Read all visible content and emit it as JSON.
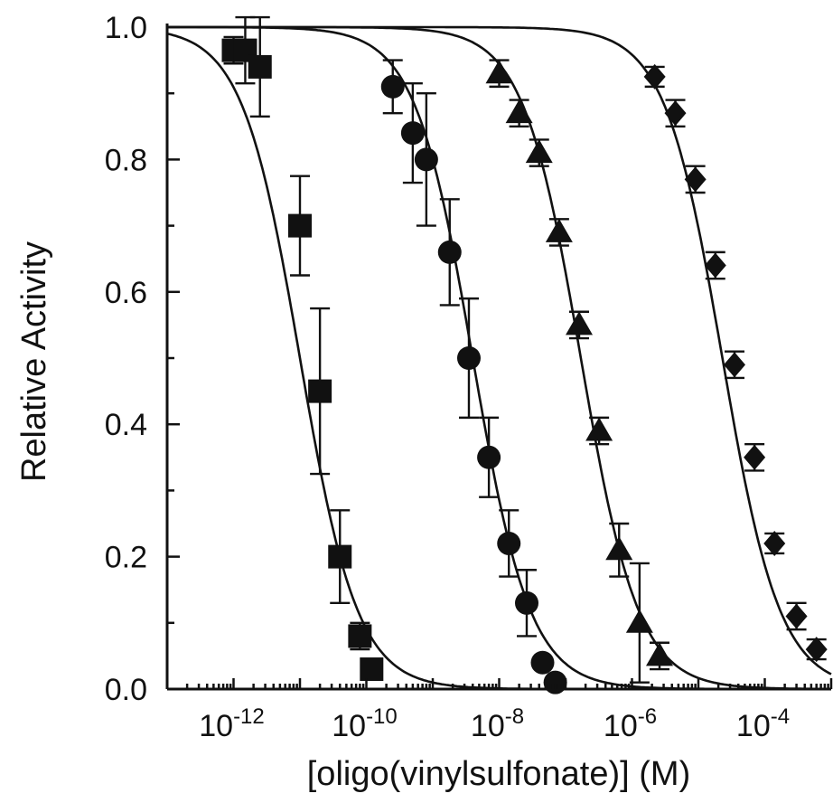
{
  "chart_data": {
    "type": "scatter",
    "xlabel": "[oligo(vinylsulfonate)] (M)",
    "ylabel": "Relative Activity",
    "x_scale": "log",
    "xlim": [
      1e-13,
      0.001
    ],
    "ylim": [
      0.0,
      1.0
    ],
    "x_ticks": [
      {
        "value": 1e-12,
        "base": "10",
        "exp": "-12"
      },
      {
        "value": 1e-10,
        "base": "10",
        "exp": "-10"
      },
      {
        "value": 1e-08,
        "base": "10",
        "exp": "-8"
      },
      {
        "value": 1e-06,
        "base": "10",
        "exp": "-6"
      },
      {
        "value": 0.0001,
        "base": "10",
        "exp": "-4"
      }
    ],
    "y_ticks": [
      {
        "value": 0.0,
        "label": "0.0"
      },
      {
        "value": 0.2,
        "label": "0.2"
      },
      {
        "value": 0.4,
        "label": "0.4"
      },
      {
        "value": 0.6,
        "label": "0.6"
      },
      {
        "value": 0.8,
        "label": "0.8"
      },
      {
        "value": 1.0,
        "label": "1.0"
      }
    ],
    "grid": false,
    "series": [
      {
        "marker": "square",
        "fit": {
          "ic50": 1e-11,
          "hill": 1.0
        },
        "points": [
          {
            "x": 1e-12,
            "y": 0.965,
            "err": 0.02
          },
          {
            "x": 1.5e-12,
            "y": 0.965,
            "err": 0.05
          },
          {
            "x": 2.5e-12,
            "y": 0.94,
            "err": 0.075
          },
          {
            "x": 1e-11,
            "y": 0.7,
            "err": 0.075
          },
          {
            "x": 2e-11,
            "y": 0.45,
            "err": 0.125
          },
          {
            "x": 4e-11,
            "y": 0.2,
            "err": 0.07
          },
          {
            "x": 8e-11,
            "y": 0.08,
            "err": 0.02
          },
          {
            "x": 1.2e-10,
            "y": 0.03,
            "err": 0.0
          }
        ]
      },
      {
        "marker": "circle",
        "fit": {
          "ic50": 4e-09,
          "hill": 1.0
        },
        "points": [
          {
            "x": 2.5e-10,
            "y": 0.91,
            "err": 0.04
          },
          {
            "x": 5e-10,
            "y": 0.84,
            "err": 0.075
          },
          {
            "x": 8e-10,
            "y": 0.8,
            "err": 0.1
          },
          {
            "x": 1.8e-09,
            "y": 0.66,
            "err": 0.08
          },
          {
            "x": 3.5e-09,
            "y": 0.5,
            "err": 0.09
          },
          {
            "x": 7e-09,
            "y": 0.35,
            "err": 0.06
          },
          {
            "x": 1.4e-08,
            "y": 0.22,
            "err": 0.05
          },
          {
            "x": 2.6e-08,
            "y": 0.13,
            "err": 0.05
          },
          {
            "x": 4.5e-08,
            "y": 0.04,
            "err": 0.0
          },
          {
            "x": 7e-08,
            "y": 0.01,
            "err": 0.0
          }
        ]
      },
      {
        "marker": "triangle",
        "fit": {
          "ic50": 1.7e-07,
          "hill": 1.0
        },
        "points": [
          {
            "x": 1e-08,
            "y": 0.93,
            "err": 0.02
          },
          {
            "x": 2e-08,
            "y": 0.87,
            "err": 0.02
          },
          {
            "x": 4e-08,
            "y": 0.81,
            "err": 0.02
          },
          {
            "x": 8e-08,
            "y": 0.69,
            "err": 0.02
          },
          {
            "x": 1.6e-07,
            "y": 0.55,
            "err": 0.02
          },
          {
            "x": 3.2e-07,
            "y": 0.39,
            "err": 0.02
          },
          {
            "x": 6.4e-07,
            "y": 0.21,
            "err": 0.04
          },
          {
            "x": 1.3e-06,
            "y": 0.1,
            "err": 0.09
          },
          {
            "x": 2.6e-06,
            "y": 0.05,
            "err": 0.02
          }
        ]
      },
      {
        "marker": "diamond",
        "fit": {
          "ic50": 2.3e-05,
          "hill": 1.0
        },
        "points": [
          {
            "x": 2.2e-06,
            "y": 0.925,
            "err": 0.015
          },
          {
            "x": 4.5e-06,
            "y": 0.87,
            "err": 0.02
          },
          {
            "x": 9e-06,
            "y": 0.77,
            "err": 0.02
          },
          {
            "x": 1.8e-05,
            "y": 0.64,
            "err": 0.02
          },
          {
            "x": 3.5e-05,
            "y": 0.49,
            "err": 0.02
          },
          {
            "x": 7e-05,
            "y": 0.35,
            "err": 0.02
          },
          {
            "x": 0.00014,
            "y": 0.22,
            "err": 0.015
          },
          {
            "x": 0.0003,
            "y": 0.11,
            "err": 0.02
          },
          {
            "x": 0.0006,
            "y": 0.06,
            "err": 0.015
          }
        ]
      }
    ]
  }
}
